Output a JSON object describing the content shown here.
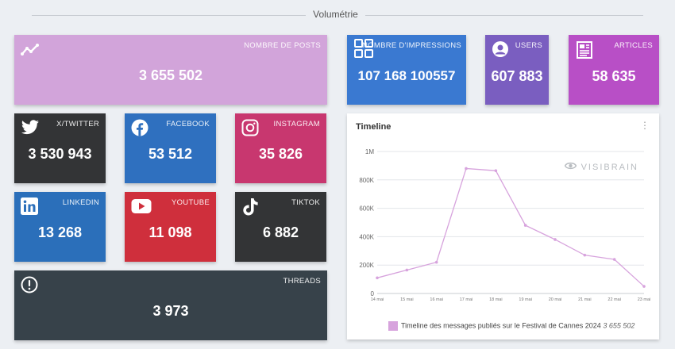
{
  "section_title": "Volumétrie",
  "tiles": {
    "posts": {
      "label": "NOMBRE DE POSTS",
      "value": "3 655 502",
      "color": "#d2a4da"
    },
    "impressions": {
      "label": "NOMBRE D'IMPRESSIONS",
      "value": "107 168 100557",
      "color": "#3a79d1"
    },
    "users": {
      "label": "USERS",
      "value": "607 883",
      "color": "#7a5ec0"
    },
    "articles": {
      "label": "ARTICLES",
      "value": "58 635",
      "color": "#b84fc6"
    },
    "twitter": {
      "label": "X/TWITTER",
      "value": "3 530 943",
      "color": "#333436"
    },
    "facebook": {
      "label": "FACEBOOK",
      "value": "53 512",
      "color": "#2f70bf"
    },
    "instagram": {
      "label": "INSTAGRAM",
      "value": "35 826",
      "color": "#c8376f"
    },
    "linkedin": {
      "label": "LINKEDIN",
      "value": "13 268",
      "color": "#2b6fba"
    },
    "youtube": {
      "label": "YOUTUBE",
      "value": "11 098",
      "color": "#cf2f3c"
    },
    "tiktok": {
      "label": "TIKTOK",
      "value": "6 882",
      "color": "#333436"
    },
    "threads": {
      "label": "THREADS",
      "value": "3 973",
      "color": "#37424a"
    }
  },
  "timeline": {
    "title": "Timeline",
    "menu": "⋮",
    "watermark": "VISIBRAIN"
  },
  "chart_data": {
    "type": "line",
    "categories": [
      "14 mai",
      "15 mai",
      "16 mai",
      "17 mai",
      "18 mai",
      "19 mai",
      "20 mai",
      "21 mai",
      "22 mai",
      "23 mai"
    ],
    "series": [
      {
        "name": "Timeline des messages publiés sur le Festival de Cannes 2024",
        "values": [
          110000,
          165000,
          220000,
          880000,
          865000,
          480000,
          380000,
          270000,
          240000,
          50000
        ],
        "color": "#d7a3dd"
      }
    ],
    "yticks": [
      "0",
      "200K",
      "400K",
      "600K",
      "800K",
      "1M"
    ],
    "ylim": [
      0,
      1000000
    ],
    "legend_value": "3 655 502",
    "grid": true,
    "legend_position": "bottom"
  }
}
